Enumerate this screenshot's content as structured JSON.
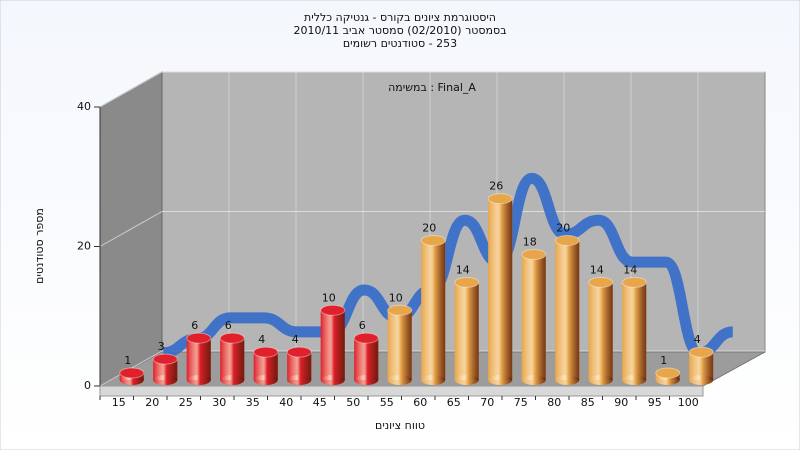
{
  "chart_data": {
    "type": "bar3d",
    "title": [
      "היסטוגרמת ציונים בקורס - גנטיקה כללית",
      "בסמסטר  (02/2010)  סמסטר אביב 2010/11",
      "253 - סטודנטים רשומים"
    ],
    "annotation": "Final_A : במשימה",
    "x_label": "טווח ציונים",
    "y_label": "מספר סטודנטים",
    "categories": [
      "15",
      "20",
      "25",
      "30",
      "35",
      "40",
      "45",
      "50",
      "55",
      "60",
      "65",
      "70",
      "75",
      "80",
      "85",
      "90",
      "95",
      "100"
    ],
    "values": [
      1,
      3,
      6,
      6,
      4,
      4,
      10,
      6,
      10,
      20,
      14,
      26,
      18,
      20,
      14,
      14,
      1,
      4
    ],
    "colors": [
      "#e0202a",
      "#e0202a",
      "#e0202a",
      "#e0202a",
      "#e0202a",
      "#e0202a",
      "#e0202a",
      "#e0202a",
      "#e8a64a",
      "#e8a64a",
      "#e8a64a",
      "#e8a64a",
      "#e8a64a",
      "#e8a64a",
      "#e8a64a",
      "#e8a64a",
      "#e8a64a",
      "#e8a64a"
    ],
    "trend_color": "#3a70c8",
    "ylim": [
      0,
      40
    ],
    "yticks": [
      0,
      20,
      40
    ],
    "grid": true
  }
}
